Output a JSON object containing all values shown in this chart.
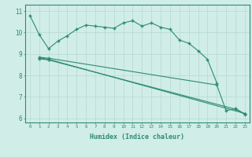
{
  "line1_x": [
    0,
    1,
    2,
    3,
    4,
    5,
    6,
    7,
    8,
    9,
    10,
    11,
    12,
    13,
    14,
    15,
    16,
    17,
    18,
    19,
    20
  ],
  "line1_y": [
    10.8,
    9.9,
    9.25,
    9.6,
    9.85,
    10.15,
    10.35,
    10.3,
    10.25,
    10.2,
    10.45,
    10.55,
    10.3,
    10.45,
    10.25,
    10.15,
    9.65,
    9.5,
    9.15,
    8.75,
    7.65
  ],
  "line2_x": [
    1,
    2,
    20,
    21,
    22,
    23
  ],
  "line2_y": [
    8.85,
    8.8,
    7.55,
    6.35,
    6.45,
    6.2
  ],
  "line3_x": [
    1,
    2,
    23
  ],
  "line3_y": [
    8.82,
    8.75,
    6.22
  ],
  "line4_x": [
    1,
    2,
    22,
    23
  ],
  "line4_y": [
    8.78,
    8.72,
    6.42,
    6.18
  ],
  "color": "#2e8b70",
  "bg_color": "#d0ede8",
  "grid_color": "#b8d8d0",
  "xlabel": "Humidex (Indice chaleur)",
  "xlim": [
    -0.5,
    23.5
  ],
  "ylim": [
    5.8,
    11.3
  ],
  "yticks": [
    6,
    7,
    8,
    9,
    10,
    11
  ],
  "xticks": [
    0,
    1,
    2,
    3,
    4,
    5,
    6,
    7,
    8,
    9,
    10,
    11,
    12,
    13,
    14,
    15,
    16,
    17,
    18,
    19,
    20,
    21,
    22,
    23
  ]
}
